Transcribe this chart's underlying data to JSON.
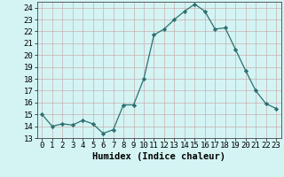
{
  "title": "",
  "xlabel": "Humidex (Indice chaleur)",
  "ylabel": "",
  "x": [
    0,
    1,
    2,
    3,
    4,
    5,
    6,
    7,
    8,
    9,
    10,
    11,
    12,
    13,
    14,
    15,
    16,
    17,
    18,
    19,
    20,
    21,
    22,
    23
  ],
  "y": [
    15.0,
    14.0,
    14.2,
    14.1,
    14.5,
    14.2,
    13.4,
    13.7,
    15.8,
    15.8,
    18.0,
    21.7,
    22.2,
    23.0,
    23.7,
    24.3,
    23.7,
    22.2,
    22.3,
    20.5,
    18.7,
    17.0,
    15.9,
    15.5
  ],
  "line_color": "#2d7070",
  "marker": "D",
  "marker_size": 2.2,
  "bg_color": "#d4f4f4",
  "grid_major_color": "#c8b0b0",
  "grid_minor_color": "#c8b0b0",
  "ylim": [
    13,
    24.5
  ],
  "yticks": [
    13,
    14,
    15,
    16,
    17,
    18,
    19,
    20,
    21,
    22,
    23,
    24
  ],
  "xlim": [
    -0.5,
    23.5
  ],
  "xlabel_fontsize": 7.5,
  "tick_fontsize": 6.5,
  "linewidth": 0.9
}
